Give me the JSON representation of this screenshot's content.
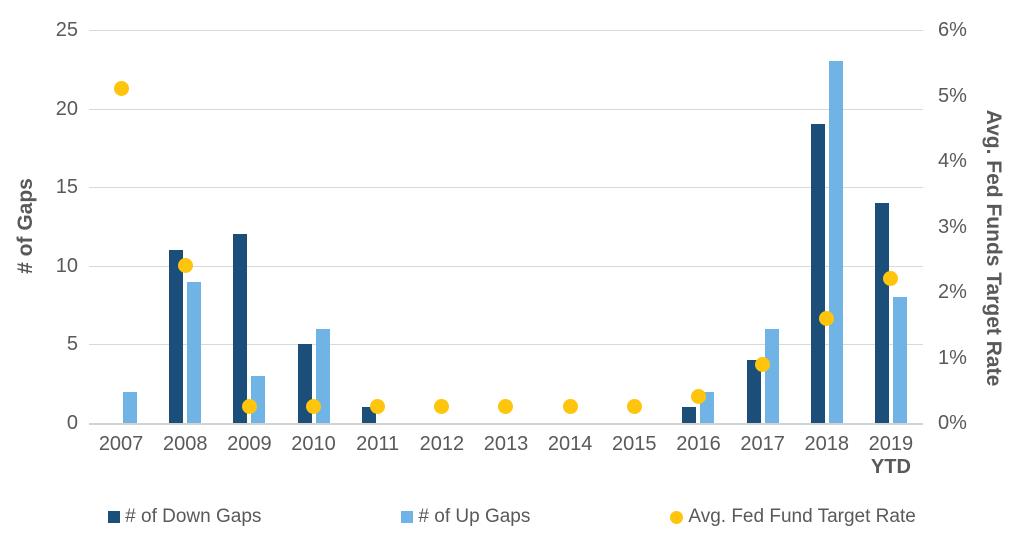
{
  "chart_data": {
    "type": "combo-bar-scatter",
    "title": "",
    "categories": [
      "2007",
      "2008",
      "2009",
      "2010",
      "2011",
      "2012",
      "2013",
      "2014",
      "2015",
      "2016",
      "2017",
      "2018",
      "2019 YTD"
    ],
    "x_tick_lines": [
      [
        "2007"
      ],
      [
        "2008"
      ],
      [
        "2009"
      ],
      [
        "2010"
      ],
      [
        "2011"
      ],
      [
        "2012"
      ],
      [
        "2013"
      ],
      [
        "2014"
      ],
      [
        "2015"
      ],
      [
        "2016"
      ],
      [
        "2017"
      ],
      [
        "2018"
      ],
      [
        "2019",
        "YTD"
      ]
    ],
    "series": [
      {
        "name": "# of Down Gaps",
        "type": "bar",
        "axis": "left",
        "color": "#1B4E79",
        "values": [
          0,
          11,
          12,
          5,
          1,
          0,
          0,
          0,
          0,
          1,
          4,
          19,
          14
        ]
      },
      {
        "name": "# of Up Gaps",
        "type": "bar",
        "axis": "left",
        "color": "#70B4E6",
        "values": [
          2,
          9,
          3,
          6,
          0,
          0,
          0,
          0,
          0,
          2,
          6,
          23,
          8
        ]
      },
      {
        "name": "Avg. Fed Fund Target Rate",
        "type": "scatter",
        "axis": "right",
        "color": "#FFC40C",
        "values": [
          5.1,
          2.4,
          0.25,
          0.25,
          0.25,
          0.25,
          0.25,
          0.25,
          0.25,
          0.4,
          0.9,
          1.6,
          2.2
        ]
      }
    ],
    "left_axis": {
      "label": "# of Gaps",
      "min": 0,
      "max": 25,
      "ticks": [
        0,
        5,
        10,
        15,
        20,
        25
      ]
    },
    "right_axis": {
      "label": "Avg. Fed Funds Target Rate",
      "min": 0,
      "max": 6,
      "tick_labels": [
        "0%",
        "1%",
        "2%",
        "3%",
        "4%",
        "5%",
        "6%"
      ]
    },
    "grid": "horizontal",
    "legend_position": "bottom",
    "colors": {
      "axis_text": "#595959",
      "gridline": "#D9D9D9",
      "background": "#FFFFFF"
    }
  }
}
